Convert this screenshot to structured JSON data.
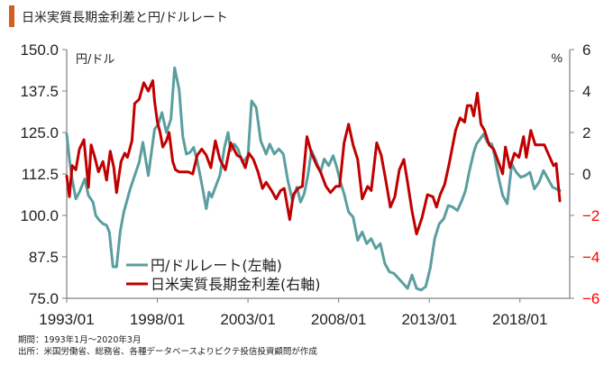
{
  "title": "日米実質長期金利差と円/ドルレート",
  "colors": {
    "title_bar": "#d2601f",
    "usdjpy": "#5b9ea0",
    "spread": "#c00000",
    "axis": "#808080",
    "neg_tick": "#ff0000"
  },
  "footnotes": {
    "period": "期間：1993年1月～2020年3月",
    "source": "出所：米国労働省、総務省、各種データベースよりピクテ投信投資顧問が作成"
  },
  "chart_data": {
    "type": "line",
    "title": "日米実質長期金利差と円/ドルレート",
    "xlabel": "",
    "x_ticks": [
      "1993/01",
      "1998/01",
      "2003/01",
      "2008/01",
      "2013/01",
      "2018/01"
    ],
    "x_tick_values": [
      1993.0,
      1998.0,
      2003.0,
      2008.0,
      2013.0,
      2018.0
    ],
    "xlim": [
      1993.0,
      2020.25
    ],
    "y_left": {
      "label": "円/ドル",
      "lim": [
        75.0,
        150.0
      ],
      "ticks": [
        "75.0",
        "87.5",
        "100.0",
        "112.5",
        "125.0",
        "137.5",
        "150.0"
      ],
      "tick_values": [
        75.0,
        87.5,
        100.0,
        112.5,
        125.0,
        137.5,
        150.0
      ]
    },
    "y_right": {
      "label": "%",
      "lim": [
        -6,
        6
      ],
      "ticks": [
        "−6",
        "−4",
        "−2",
        "0",
        "2",
        "4",
        "6"
      ],
      "tick_values": [
        -6,
        -4,
        -2,
        0,
        2,
        4,
        6
      ]
    },
    "grid": false,
    "legend": {
      "position": "bottom-left",
      "entries": [
        "円/ドルレート(左軸)",
        "日米実質長期金利差(右軸)"
      ]
    },
    "series": [
      {
        "name": "円/ドルレート(左軸)",
        "axis": "left",
        "x": [
          1993.0,
          1993.15,
          1993.3,
          1993.5,
          1993.7,
          1994.0,
          1994.2,
          1994.45,
          1994.6,
          1994.8,
          1995.0,
          1995.2,
          1995.35,
          1995.55,
          1995.75,
          1995.95,
          1996.15,
          1996.3,
          1996.5,
          1996.75,
          1997.0,
          1997.2,
          1997.5,
          1997.7,
          1997.85,
          1998.05,
          1998.25,
          1998.5,
          1998.75,
          1998.95,
          1999.2,
          1999.4,
          1999.6,
          1999.8,
          2000.0,
          2000.2,
          2000.45,
          2000.7,
          2000.85,
          2001.0,
          2001.2,
          2001.45,
          2001.7,
          2001.9,
          2002.05,
          2002.25,
          2002.45,
          2002.7,
          2003.0,
          2003.2,
          2003.45,
          2003.7,
          2004.0,
          2004.2,
          2004.45,
          2004.7,
          2004.95,
          2005.2,
          2005.45,
          2005.7,
          2005.9,
          2006.1,
          2006.3,
          2006.5,
          2006.75,
          2007.0,
          2007.2,
          2007.45,
          2007.7,
          2007.9,
          2008.1,
          2008.3,
          2008.55,
          2008.8,
          2009.05,
          2009.3,
          2009.55,
          2009.8,
          2010.05,
          2010.3,
          2010.55,
          2010.8,
          2011.05,
          2011.3,
          2011.55,
          2011.8,
          2012.05,
          2012.3,
          2012.55,
          2012.8,
          2013.05,
          2013.3,
          2013.55,
          2013.8,
          2014.05,
          2014.3,
          2014.55,
          2014.8,
          2015.0,
          2015.2,
          2015.45,
          2015.6,
          2015.8,
          2016.0,
          2016.2,
          2016.45,
          2016.6,
          2016.8,
          2017.05,
          2017.3,
          2017.55,
          2017.8,
          2018.05,
          2018.3,
          2018.55,
          2018.8,
          2019.05,
          2019.3,
          2019.55,
          2019.8,
          2020.0,
          2020.2
        ],
        "y": [
          124.5,
          117.0,
          111.0,
          105.0,
          107.0,
          111.0,
          106.0,
          104.0,
          100.0,
          98.5,
          97.5,
          97.0,
          95.0,
          84.5,
          84.5,
          95.0,
          101.0,
          104.0,
          108.0,
          112.0,
          116.0,
          122.0,
          112.0,
          120.0,
          126.0,
          127.5,
          131.0,
          125.0,
          129.0,
          144.5,
          138.0,
          124.0,
          118.5,
          119.0,
          120.5,
          116.5,
          109.5,
          102.0,
          107.0,
          105.5,
          108.5,
          112.0,
          120.5,
          125.0,
          119.5,
          121.5,
          120.0,
          116.0,
          118.0,
          134.5,
          132.5,
          122.5,
          118.5,
          121.5,
          118.5,
          120.0,
          118.5,
          110.5,
          104.5,
          108.5,
          104.0,
          106.5,
          112.0,
          119.5,
          116.5,
          113.0,
          117.0,
          115.0,
          118.0,
          114.5,
          110.0,
          106.5,
          101.0,
          99.5,
          92.5,
          95.0,
          91.5,
          93.0,
          90.0,
          91.5,
          85.5,
          83.0,
          82.5,
          81.0,
          79.5,
          78.0,
          82.0,
          78.0,
          77.5,
          78.5,
          84.0,
          93.0,
          97.5,
          99.0,
          103.0,
          102.5,
          101.5,
          104.5,
          107.5,
          113.0,
          119.0,
          121.5,
          123.0,
          124.5,
          122.0,
          121.5,
          118.0,
          112.0,
          106.0,
          103.5,
          115.5,
          113.0,
          111.5,
          112.0,
          113.0,
          108.0,
          110.0,
          113.5,
          111.0,
          108.5,
          108.0,
          107.5
        ]
      },
      {
        "name": "日米実質長期金利差(右軸)",
        "axis": "right",
        "x": [
          1993.0,
          1993.15,
          1993.3,
          1993.5,
          1993.7,
          1993.95,
          1994.2,
          1994.35,
          1994.55,
          1994.75,
          1995.0,
          1995.2,
          1995.4,
          1995.6,
          1995.75,
          1996.0,
          1996.2,
          1996.35,
          1996.6,
          1996.75,
          1997.0,
          1997.25,
          1997.5,
          1997.75,
          1997.85,
          1998.0,
          1998.15,
          1998.3,
          1998.5,
          1998.65,
          1998.85,
          1999.0,
          1999.2,
          1999.45,
          1999.7,
          1999.95,
          2000.2,
          2000.45,
          2000.7,
          2000.95,
          2001.2,
          2001.45,
          2001.75,
          2002.05,
          2002.4,
          2002.6,
          2002.85,
          2003.05,
          2003.3,
          2003.55,
          2003.8,
          2004.0,
          2004.3,
          2004.55,
          2004.8,
          2005.0,
          2005.3,
          2005.5,
          2005.75,
          2006.0,
          2006.25,
          2006.5,
          2006.8,
          2007.0,
          2007.3,
          2007.55,
          2007.85,
          2008.05,
          2008.3,
          2008.55,
          2008.8,
          2009.05,
          2009.3,
          2009.6,
          2009.8,
          2010.1,
          2010.35,
          2010.6,
          2010.85,
          2011.1,
          2011.35,
          2011.6,
          2011.8,
          2012.05,
          2012.3,
          2012.6,
          2012.9,
          2013.2,
          2013.4,
          2013.6,
          2013.85,
          2014.1,
          2014.45,
          2014.7,
          2014.95,
          2015.1,
          2015.3,
          2015.45,
          2015.65,
          2015.85,
          2016.05,
          2016.3,
          2016.55,
          2016.85,
          2017.05,
          2017.2,
          2017.45,
          2017.7,
          2017.95,
          2018.2,
          2018.35,
          2018.6,
          2018.85,
          2019.1,
          2019.35,
          2019.6,
          2019.85,
          2020.0,
          2020.2
        ],
        "y": [
          -0.1,
          -1.1,
          0.4,
          0.2,
          1.2,
          1.65,
          -0.65,
          1.4,
          0.8,
          0.1,
          0.6,
          -0.3,
          1.1,
          0.3,
          -0.9,
          0.6,
          1.0,
          0.8,
          1.6,
          3.4,
          3.6,
          4.4,
          4.0,
          4.5,
          3.5,
          2.5,
          2.0,
          1.3,
          1.6,
          2.0,
          0.6,
          0.2,
          0.1,
          0.1,
          0.1,
          0.0,
          0.9,
          1.2,
          0.9,
          0.3,
          1.6,
          0.7,
          0.2,
          1.5,
          0.9,
          0.8,
          0.3,
          1.0,
          0.7,
          0.1,
          -0.7,
          -0.4,
          -0.8,
          -1.2,
          -0.8,
          -0.7,
          -2.2,
          -1.0,
          -0.7,
          -0.6,
          1.8,
          1.0,
          0.4,
          0.1,
          -0.6,
          -0.9,
          -0.6,
          -0.6,
          1.5,
          2.4,
          1.4,
          0.7,
          -1.2,
          -0.6,
          -0.8,
          1.5,
          0.9,
          -0.3,
          -1.6,
          -1.1,
          0.2,
          0.7,
          -0.4,
          -1.8,
          -2.9,
          -2.1,
          -1.0,
          -1.1,
          -1.6,
          -1.0,
          -0.5,
          0.5,
          2.1,
          2.7,
          2.5,
          3.3,
          3.3,
          2.8,
          3.9,
          2.4,
          2.1,
          1.4,
          1.2,
          0.5,
          0.0,
          1.3,
          0.3,
          1.0,
          0.8,
          1.8,
          0.8,
          2.1,
          1.4,
          1.4,
          1.4,
          0.9,
          0.4,
          0.5,
          -1.3
        ]
      }
    ]
  }
}
